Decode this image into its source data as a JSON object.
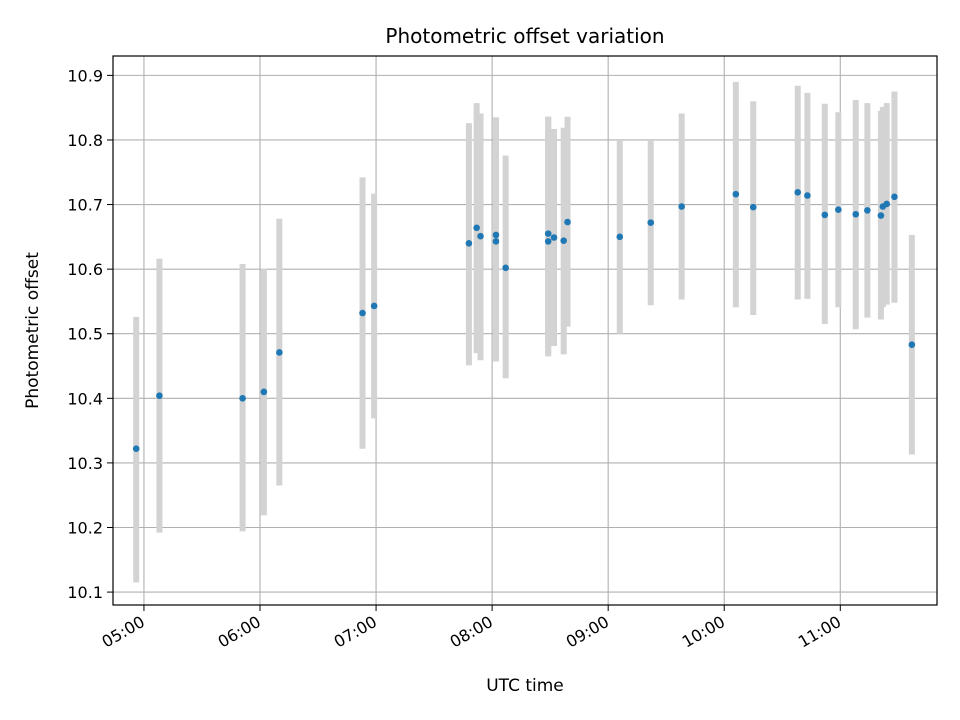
{
  "chart_data": {
    "type": "scatter",
    "title": "Photometric offset variation",
    "xlabel": "UTC time",
    "ylabel": "Photometric offset",
    "x_type": "time (HH:MM, UTC)",
    "xlim": [
      "04:44",
      "11:50"
    ],
    "ylim": [
      10.08,
      10.93
    ],
    "x_ticks": [
      "05:00",
      "06:00",
      "07:00",
      "08:00",
      "09:00",
      "10:00",
      "11:00"
    ],
    "y_ticks": [
      10.1,
      10.2,
      10.3,
      10.4,
      10.5,
      10.6,
      10.7,
      10.8,
      10.9
    ],
    "grid": true,
    "point_color": "#1f77b4",
    "errorbar_color": "#d3d3d3",
    "series": [
      {
        "points": [
          {
            "x": "04:56",
            "y": 10.322,
            "yerr": [
              10.115,
              10.526
            ]
          },
          {
            "x": "05:08",
            "y": 10.404,
            "yerr": [
              10.192,
              10.616
            ]
          },
          {
            "x": "05:51",
            "y": 10.4,
            "yerr": [
              10.194,
              10.608
            ]
          },
          {
            "x": "06:02",
            "y": 10.41,
            "yerr": [
              10.219,
              10.601
            ]
          },
          {
            "x": "06:10",
            "y": 10.471,
            "yerr": [
              10.265,
              10.678
            ]
          },
          {
            "x": "06:53",
            "y": 10.532,
            "yerr": [
              10.322,
              10.742
            ]
          },
          {
            "x": "06:59",
            "y": 10.543,
            "yerr": [
              10.369,
              10.717
            ]
          },
          {
            "x": "07:48",
            "y": 10.64,
            "yerr": [
              10.451,
              10.826
            ]
          },
          {
            "x": "07:52",
            "y": 10.664,
            "yerr": [
              10.47,
              10.857
            ]
          },
          {
            "x": "07:54",
            "y": 10.651,
            "yerr": [
              10.459,
              10.841
            ]
          },
          {
            "x": "08:02",
            "y": 10.643,
            "yerr": [
              10.457,
              10.835
            ]
          },
          {
            "x": "08:02",
            "y": 10.653,
            "yerr": [
              10.47,
              10.835
            ]
          },
          {
            "x": "08:07",
            "y": 10.602,
            "yerr": [
              10.431,
              10.776
            ]
          },
          {
            "x": "08:29",
            "y": 10.643,
            "yerr": [
              10.465,
              10.836
            ]
          },
          {
            "x": "08:29",
            "y": 10.655,
            "yerr": [
              10.47,
              10.836
            ]
          },
          {
            "x": "08:32",
            "y": 10.649,
            "yerr": [
              10.481,
              10.817
            ]
          },
          {
            "x": "08:37",
            "y": 10.644,
            "yerr": [
              10.468,
              10.819
            ]
          },
          {
            "x": "08:39",
            "y": 10.673,
            "yerr": [
              10.511,
              10.836
            ]
          },
          {
            "x": "09:06",
            "y": 10.65,
            "yerr": [
              10.5,
              10.8
            ]
          },
          {
            "x": "09:22",
            "y": 10.672,
            "yerr": [
              10.544,
              10.8
            ]
          },
          {
            "x": "09:38",
            "y": 10.697,
            "yerr": [
              10.553,
              10.841
            ]
          },
          {
            "x": "10:06",
            "y": 10.716,
            "yerr": [
              10.541,
              10.89
            ]
          },
          {
            "x": "10:15",
            "y": 10.696,
            "yerr": [
              10.529,
              10.86
            ]
          },
          {
            "x": "10:38",
            "y": 10.719,
            "yerr": [
              10.553,
              10.884
            ]
          },
          {
            "x": "10:43",
            "y": 10.714,
            "yerr": [
              10.554,
              10.873
            ]
          },
          {
            "x": "10:52",
            "y": 10.684,
            "yerr": [
              10.515,
              10.856
            ]
          },
          {
            "x": "10:59",
            "y": 10.692,
            "yerr": [
              10.541,
              10.843
            ]
          },
          {
            "x": "11:08",
            "y": 10.685,
            "yerr": [
              10.507,
              10.862
            ]
          },
          {
            "x": "11:14",
            "y": 10.691,
            "yerr": [
              10.525,
              10.857
            ]
          },
          {
            "x": "11:21",
            "y": 10.683,
            "yerr": [
              10.522,
              10.845
            ]
          },
          {
            "x": "11:22",
            "y": 10.697,
            "yerr": [
              10.541,
              10.851
            ]
          },
          {
            "x": "11:24",
            "y": 10.701,
            "yerr": [
              10.545,
              10.857
            ]
          },
          {
            "x": "11:28",
            "y": 10.712,
            "yerr": [
              10.548,
              10.875
            ]
          },
          {
            "x": "11:37",
            "y": 10.483,
            "yerr": [
              10.313,
              10.653
            ]
          }
        ]
      }
    ]
  }
}
